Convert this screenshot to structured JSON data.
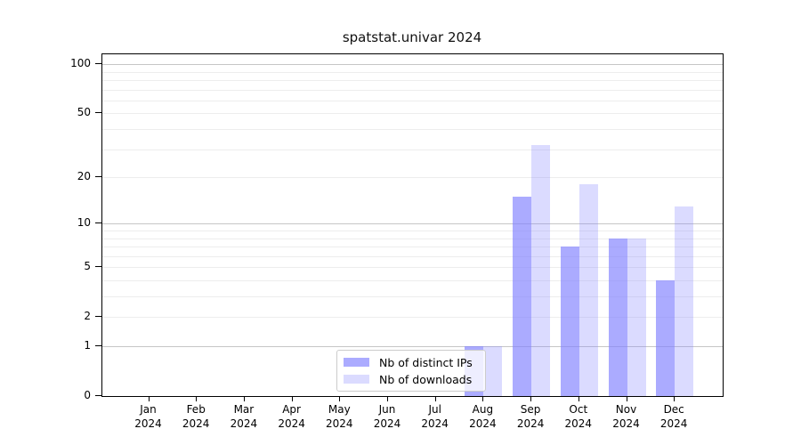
{
  "chart_data": {
    "type": "bar",
    "title": "spatstat.univar 2024",
    "categories": [
      "Jan",
      "Feb",
      "Mar",
      "Apr",
      "May",
      "Jun",
      "Jul",
      "Aug",
      "Sep",
      "Oct",
      "Nov",
      "Dec"
    ],
    "year_label": "2024",
    "series": [
      {
        "name": "Nb of distinct IPs",
        "key": "distinct-ips",
        "color": "#8080ffa8",
        "values": [
          0,
          0,
          0,
          0,
          0,
          0,
          0,
          1,
          15,
          7,
          8,
          4
        ]
      },
      {
        "name": "Nb of downloads",
        "key": "downloads",
        "color": "#8080ff48",
        "values": [
          0,
          0,
          0,
          0,
          0,
          0,
          0,
          1,
          32,
          18,
          8,
          13
        ]
      }
    ],
    "xlabel": "",
    "ylabel": "",
    "y_axis": {
      "scale": "log10(y+1)",
      "tick_labels": [
        "0",
        "1",
        "2",
        "5",
        "10",
        "20",
        "50",
        "100"
      ],
      "tick_values": [
        0,
        1,
        2,
        5,
        10,
        20,
        50,
        100
      ],
      "major_gridlines": [
        1,
        10,
        100
      ],
      "minor_gridlines": [
        2,
        3,
        4,
        5,
        6,
        7,
        8,
        9,
        20,
        30,
        40,
        50,
        60,
        70,
        80,
        90
      ],
      "ylim": [
        0,
        115
      ]
    },
    "legend": {
      "position": "bottom-center",
      "entries": [
        "Nb of distinct IPs",
        "Nb of downloads"
      ]
    },
    "grid": "on"
  },
  "colors": {
    "bar_distinct_ips_rendered": "#a9abf9",
    "bar_downloads_rendered": "#d9dcfb",
    "grid_major": "#c6c6c6",
    "grid_minor": "#ededed",
    "spine": "#000000",
    "text": "#000000",
    "legend_border": "#cccccc"
  }
}
